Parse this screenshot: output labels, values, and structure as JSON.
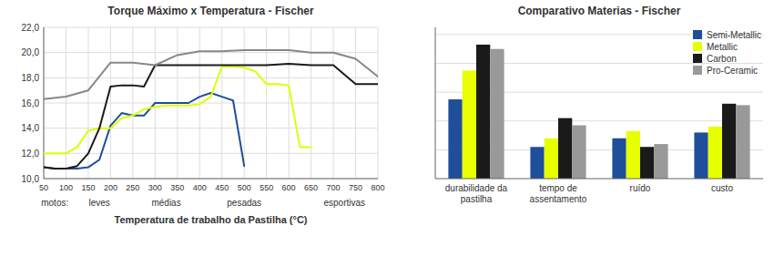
{
  "chart_data": [
    {
      "type": "line",
      "title": "Torque Máximo x Temperatura - Fischer",
      "x_label": "Temperatura de trabalho da Pastilha (°C)",
      "xlim": [
        50,
        800
      ],
      "ylim": [
        10.0,
        22.0
      ],
      "xticks": [
        50,
        100,
        150,
        200,
        250,
        300,
        350,
        400,
        450,
        500,
        550,
        600,
        650,
        700,
        750,
        800
      ],
      "yticks": [
        {
          "value": 10.0,
          "label": "10,0"
        },
        {
          "value": 12.0,
          "label": "12,0"
        },
        {
          "value": 14.0,
          "label": "14,0"
        },
        {
          "value": 16.0,
          "label": "16,0"
        },
        {
          "value": 18.0,
          "label": "18,0"
        },
        {
          "value": 20.0,
          "label": "20,0"
        },
        {
          "value": 22.0,
          "label": "22,0"
        }
      ],
      "grid": true,
      "annotations": [
        {
          "x": 75,
          "text": "motos:"
        },
        {
          "x": 175,
          "text": "leves"
        },
        {
          "x": 325,
          "text": "médias"
        },
        {
          "x": 500,
          "text": "pesadas"
        },
        {
          "x": 725,
          "text": "esportivas"
        }
      ],
      "series": [
        {
          "color": "#1f4e9a",
          "x": [
            50,
            75,
            100,
            125,
            150,
            175,
            200,
            225,
            250,
            275,
            300,
            325,
            350,
            375,
            400,
            425,
            450,
            475,
            500
          ],
          "values": [
            10.9,
            10.8,
            10.8,
            10.8,
            10.9,
            11.5,
            14.2,
            15.2,
            15.0,
            15.0,
            16.0,
            16.0,
            16.0,
            16.0,
            16.5,
            16.8,
            16.5,
            16.2,
            11.0
          ]
        },
        {
          "color": "#ddff00",
          "x": [
            50,
            75,
            100,
            125,
            150,
            175,
            200,
            225,
            250,
            275,
            300,
            325,
            350,
            375,
            400,
            425,
            450,
            475,
            500,
            525,
            550,
            575,
            600,
            625,
            650
          ],
          "values": [
            12.0,
            12.0,
            12.0,
            12.5,
            13.8,
            14.0,
            14.0,
            14.8,
            15.0,
            15.5,
            15.7,
            15.8,
            15.8,
            15.8,
            15.9,
            16.5,
            18.9,
            18.9,
            18.8,
            18.5,
            17.5,
            17.5,
            17.4,
            12.5,
            12.5
          ]
        },
        {
          "color": "#1a1a1a",
          "x": [
            50,
            75,
            100,
            125,
            150,
            175,
            200,
            225,
            250,
            275,
            300,
            350,
            400,
            450,
            500,
            550,
            600,
            650,
            700,
            750,
            800
          ],
          "values": [
            10.9,
            10.8,
            10.8,
            11.0,
            12.0,
            14.0,
            17.3,
            17.4,
            17.4,
            17.3,
            19.0,
            19.0,
            19.0,
            19.0,
            19.0,
            19.0,
            19.1,
            19.0,
            19.0,
            17.5,
            17.5
          ]
        },
        {
          "color": "#888888",
          "x": [
            50,
            100,
            150,
            200,
            250,
            300,
            350,
            400,
            450,
            500,
            550,
            600,
            650,
            700,
            750,
            800
          ],
          "values": [
            16.3,
            16.5,
            17.0,
            19.2,
            19.2,
            19.0,
            19.8,
            20.1,
            20.1,
            20.2,
            20.2,
            20.2,
            20.0,
            20.0,
            19.5,
            18.1
          ]
        }
      ]
    },
    {
      "type": "bar",
      "title": "Comparativo Materias - Fischer",
      "categories": [
        "durabilidade da\npastilha",
        "tempo de\nassentamento",
        "ruído",
        "custo"
      ],
      "ylim": [
        0,
        10.5
      ],
      "yticks": [
        2,
        4,
        6,
        8,
        10
      ],
      "grid": true,
      "tick_labels": "x",
      "legend": "upper right",
      "series": [
        {
          "name": "Semi-Metallic",
          "color": "#1f4e9a",
          "values": [
            5.5,
            2.2,
            2.8,
            3.2
          ]
        },
        {
          "name": "Metallic",
          "color": "#e8ff00",
          "values": [
            7.5,
            2.8,
            3.3,
            3.6
          ]
        },
        {
          "name": "Carbon",
          "color": "#1a1a1a",
          "values": [
            9.3,
            4.2,
            2.2,
            5.2
          ]
        },
        {
          "name": "Pro-Ceramic",
          "color": "#999999",
          "values": [
            9.0,
            3.7,
            2.4,
            5.1
          ]
        }
      ]
    }
  ]
}
